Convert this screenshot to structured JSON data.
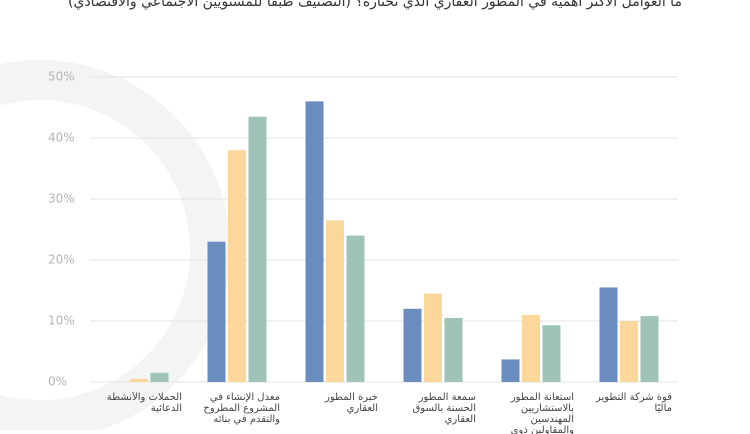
{
  "chart_data": {
    "type": "bar",
    "title": "ما العوامل الأكثر أهمية في المطور العقاري الذي تختاره؟ (التصنيف طبقاً للمستويين الاجتماعي والاقتصادي)",
    "categories": [
      "الحملات والأنشطة الدعائية",
      "معدل الإنشاء في المشروع المطروح والتقدم في بنائه",
      "خبرة المطور العقاري",
      "سمعة المطور الحسنة بالسوق العقاري",
      "استعانة المطور بالاستشاريين المهندسين والمقاولين ذوي الخبرة",
      "قوة شركة التطوير ماليًا"
    ],
    "series": [
      {
        "color": "#6a8cbf",
        "values": [
          0,
          23,
          46,
          12,
          3.7,
          15.5
        ]
      },
      {
        "color": "#fbd79c",
        "values": [
          0.5,
          38,
          26.5,
          14.5,
          11,
          10
        ]
      },
      {
        "color": "#9fc3b8",
        "values": [
          1.5,
          43.5,
          24,
          10.5,
          9.3,
          10.8
        ]
      }
    ],
    "ylim": [
      0,
      50
    ],
    "yticks": [
      {
        "value": 0,
        "label": "0%"
      },
      {
        "value": 10,
        "label": "10%"
      },
      {
        "value": 20,
        "label": "20%"
      },
      {
        "value": 30,
        "label": "30%"
      },
      {
        "value": 40,
        "label": "40%"
      },
      {
        "value": 50,
        "label": "50%"
      }
    ],
    "grid": true
  }
}
